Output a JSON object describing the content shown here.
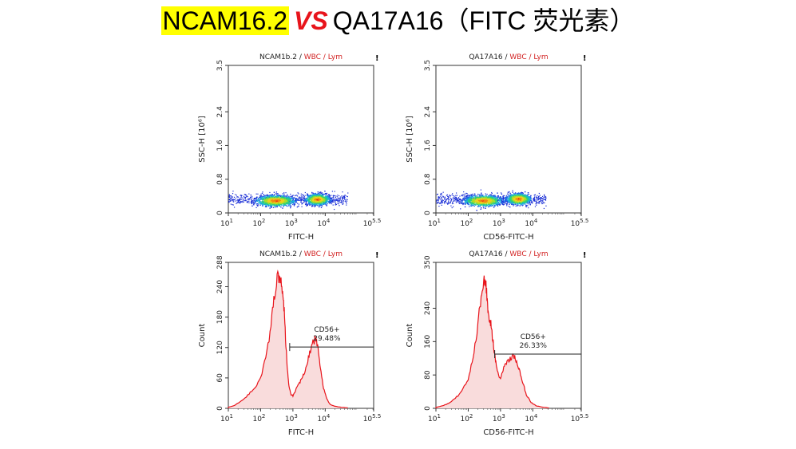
{
  "slide_title": {
    "part1": "NCAM16.2",
    "vs": "VS",
    "part2": "QA17A16（FITC 荧光素）"
  },
  "colors": {
    "histogram": "#e8141b",
    "histogram_fill": "#f9dcdc",
    "gate_red": "#d22222",
    "highlight": "#ffff00"
  },
  "chart_data": [
    {
      "type": "scatter",
      "panel": "top-left",
      "title_prefix": "NCAM1b.2 / ",
      "title_gates": "WBC / Lym",
      "mark": "!",
      "xlabel": "FITC-H",
      "ylabel": "SSC-H [10⁶]",
      "x_scale": "log",
      "xlim": [
        1,
        5.5
      ],
      "x_ticks": [
        1,
        2,
        3,
        4,
        5.5
      ],
      "ylim": [
        0,
        3.5
      ],
      "y_ticks": [
        "0",
        "0.8",
        "1.6",
        "2.4",
        "3.5"
      ],
      "y_tick_values": [
        0,
        0.8,
        1.6,
        2.4,
        3.5
      ],
      "clusters": [
        {
          "x_log": 2.45,
          "y": 0.3,
          "spread_x": 0.55,
          "spread_y": 0.06
        },
        {
          "x_log": 3.75,
          "y": 0.33,
          "spread_x": 0.35,
          "spread_y": 0.06
        }
      ],
      "x_range_log": [
        1.0,
        4.7
      ]
    },
    {
      "type": "scatter",
      "panel": "top-right",
      "title_prefix": "QA17A16 / ",
      "title_gates": "WBC / Lym",
      "mark": "!",
      "xlabel": "CD56-FITC-H",
      "ylabel": "SSC-H [10⁶]",
      "x_scale": "log",
      "xlim": [
        1,
        5.5
      ],
      "x_ticks": [
        1,
        2,
        3,
        4,
        5.5
      ],
      "ylim": [
        0,
        3.5
      ],
      "y_ticks": [
        "0",
        "0.8",
        "1.6",
        "2.4",
        "3.5"
      ],
      "y_tick_values": [
        0,
        0.8,
        1.6,
        2.4,
        3.5
      ],
      "clusters": [
        {
          "x_log": 2.45,
          "y": 0.3,
          "spread_x": 0.55,
          "spread_y": 0.06
        },
        {
          "x_log": 3.55,
          "y": 0.34,
          "spread_x": 0.35,
          "spread_y": 0.06
        }
      ],
      "x_range_log": [
        1.0,
        4.4
      ]
    },
    {
      "type": "area",
      "panel": "bottom-left",
      "title_prefix": "NCAM1b.2 / ",
      "title_gates": "WBC / Lym",
      "mark": "!",
      "xlabel": "FITC-H",
      "ylabel": "Count",
      "x_scale": "log",
      "xlim": [
        1,
        5.5
      ],
      "x_ticks": [
        1,
        2,
        3,
        4,
        5.5
      ],
      "ylim": [
        0,
        288
      ],
      "y_ticks": [
        "0",
        "60",
        "120",
        "180",
        "240",
        "288"
      ],
      "y_tick_values": [
        0,
        60,
        120,
        180,
        240,
        288
      ],
      "x_log": [
        1.0,
        1.2,
        1.4,
        1.6,
        1.8,
        2.0,
        2.2,
        2.35,
        2.45,
        2.55,
        2.62,
        2.68,
        2.73,
        2.78,
        2.83,
        2.88,
        2.93,
        3.0,
        3.1,
        3.2,
        3.3,
        3.4,
        3.5,
        3.6,
        3.7,
        3.78,
        3.85,
        3.95,
        4.05,
        4.15,
        4.3,
        4.5,
        4.7
      ],
      "counts": [
        2,
        6,
        14,
        26,
        38,
        62,
        110,
        180,
        230,
        265,
        250,
        230,
        195,
        130,
        75,
        45,
        28,
        25,
        38,
        50,
        62,
        80,
        105,
        128,
        138,
        115,
        80,
        40,
        18,
        8,
        4,
        2,
        1
      ],
      "gate_label": "CD56+",
      "gate_value": "29.48%",
      "gate_range_log": [
        2.9,
        5.5
      ],
      "gate_y": 121
    },
    {
      "type": "area",
      "panel": "bottom-right",
      "title_prefix": "QA17A16 / ",
      "title_gates": "WBC / Lym",
      "mark": "!",
      "xlabel": "CD56-FITC-H",
      "ylabel": "Count",
      "x_scale": "log",
      "xlim": [
        1,
        5.5
      ],
      "x_ticks": [
        1,
        2,
        3,
        4,
        5.5
      ],
      "ylim": [
        0,
        350
      ],
      "y_ticks": [
        "0",
        "80",
        "160",
        "240",
        "350"
      ],
      "y_tick_values": [
        0,
        80,
        160,
        240,
        350
      ],
      "x_log": [
        1.0,
        1.2,
        1.4,
        1.6,
        1.8,
        2.0,
        2.15,
        2.3,
        2.4,
        2.48,
        2.55,
        2.6,
        2.65,
        2.7,
        2.76,
        2.83,
        2.9,
        3.0,
        3.1,
        3.2,
        3.3,
        3.4,
        3.5,
        3.6,
        3.7,
        3.8,
        3.95,
        4.1,
        4.3,
        4.5
      ],
      "counts": [
        2,
        6,
        12,
        24,
        40,
        70,
        120,
        200,
        270,
        305,
        290,
        250,
        220,
        200,
        165,
        125,
        90,
        70,
        95,
        110,
        120,
        125,
        115,
        90,
        60,
        32,
        14,
        6,
        3,
        1
      ],
      "gate_label": "CD56+",
      "gate_value": "26.33%",
      "gate_range_log": [
        2.82,
        5.5
      ],
      "gate_y": 130
    }
  ]
}
